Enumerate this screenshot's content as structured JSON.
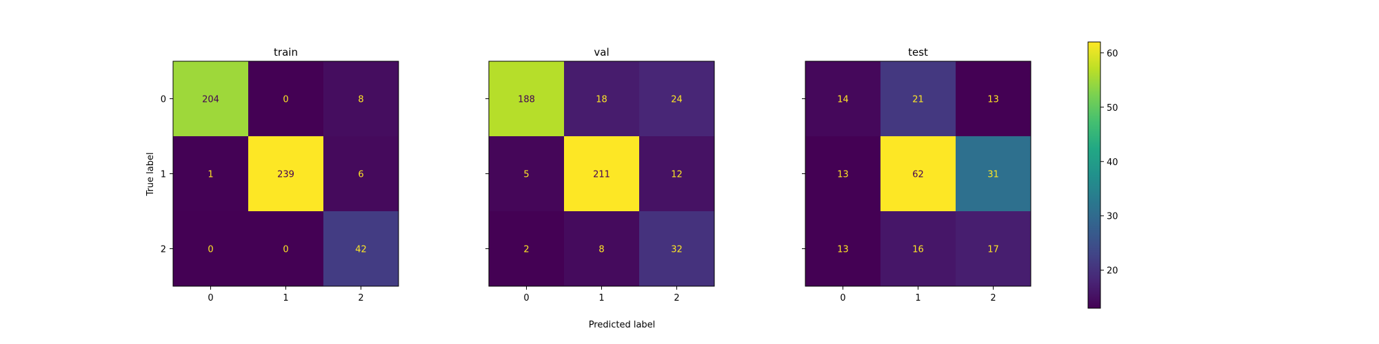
{
  "chart_data": {
    "type": "heatmap",
    "kind": "confusion-matrix-set",
    "colormap": "viridis",
    "xlabel": "Predicted label",
    "ylabel": "True label",
    "labels": [
      "0",
      "1",
      "2"
    ],
    "panels": [
      {
        "title": "train",
        "matrix": [
          [
            204,
            0,
            8
          ],
          [
            1,
            239,
            6
          ],
          [
            0,
            0,
            42
          ]
        ],
        "vmin": 0,
        "vmax": 239
      },
      {
        "title": "val",
        "matrix": [
          [
            188,
            18,
            24
          ],
          [
            5,
            211,
            12
          ],
          [
            2,
            8,
            32
          ]
        ],
        "vmin": 2,
        "vmax": 211
      },
      {
        "title": "test",
        "matrix": [
          [
            14,
            21,
            13
          ],
          [
            13,
            62,
            31
          ],
          [
            13,
            16,
            17
          ]
        ],
        "vmin": 13,
        "vmax": 62
      }
    ],
    "colorbar": {
      "min": 13,
      "max": 62,
      "ticks": [
        "20",
        "30",
        "40",
        "50",
        "60"
      ]
    },
    "text_colors": {
      "light": "#fde725",
      "dark": "#440154"
    },
    "grid": false
  }
}
